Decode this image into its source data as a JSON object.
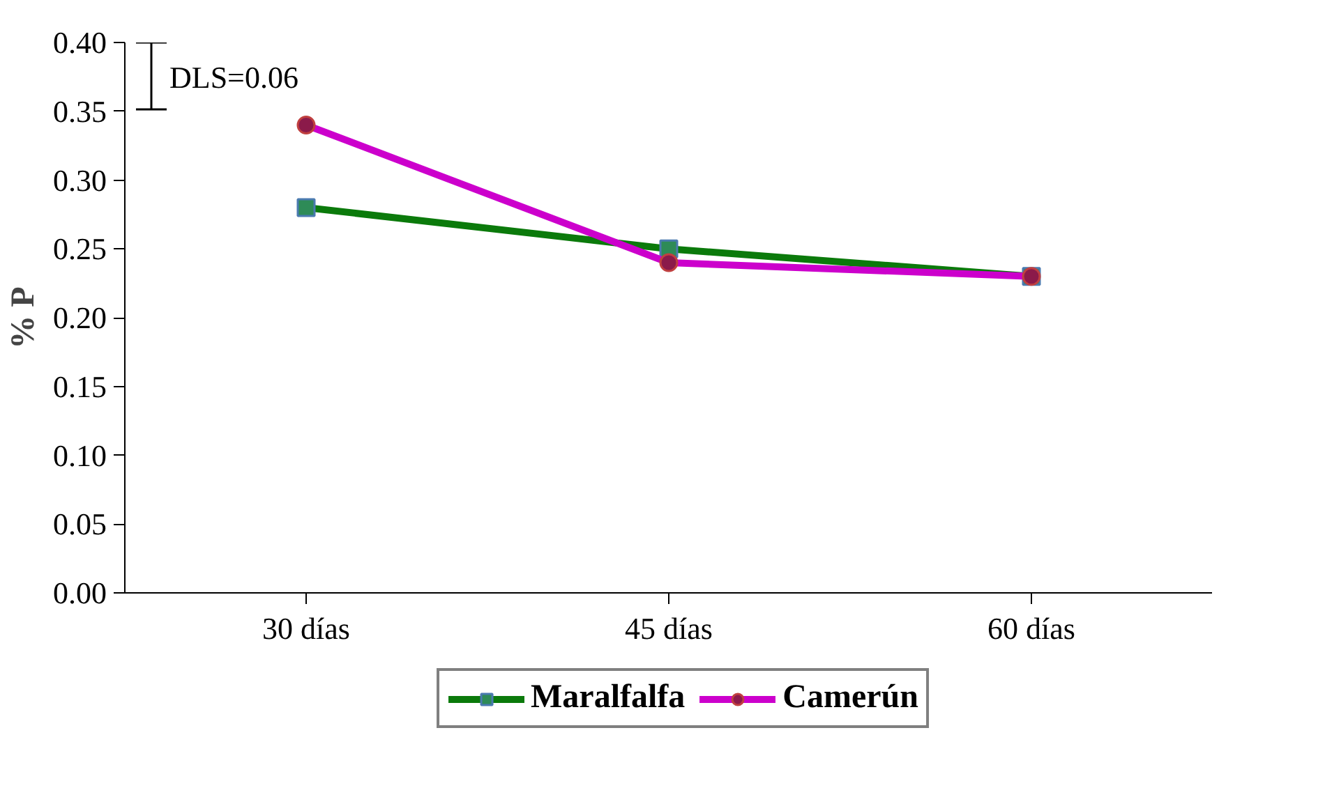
{
  "chart_data": {
    "type": "line",
    "ylabel": "% P",
    "categories": [
      "30 días",
      "45 días",
      "60 días"
    ],
    "series": [
      {
        "name": "Maralfalfa",
        "color": "#0b7a0b",
        "marker": "square",
        "values": [
          0.28,
          0.25,
          0.23
        ]
      },
      {
        "name": "Camerún",
        "color": "#cc00cc",
        "marker": "circle",
        "values": [
          0.34,
          0.24,
          0.23
        ]
      }
    ],
    "ylim": [
      0,
      0.4
    ],
    "yticks": [
      {
        "value": 0,
        "label": "0.00"
      },
      {
        "value": 0.05,
        "label": "0.05"
      },
      {
        "value": 0.1,
        "label": "0.10"
      },
      {
        "value": 0.15,
        "label": "0.15"
      },
      {
        "value": 0.2,
        "label": "0.20"
      },
      {
        "value": 0.25,
        "label": "0.25"
      },
      {
        "value": 0.3,
        "label": "0.30"
      },
      {
        "value": 0.35,
        "label": "0.35"
      },
      {
        "value": 0.4,
        "label": "0.40"
      }
    ],
    "annotations": [
      "DLS=0.06"
    ],
    "legend": "bottom",
    "grid": false,
    "line_style": "solid"
  }
}
